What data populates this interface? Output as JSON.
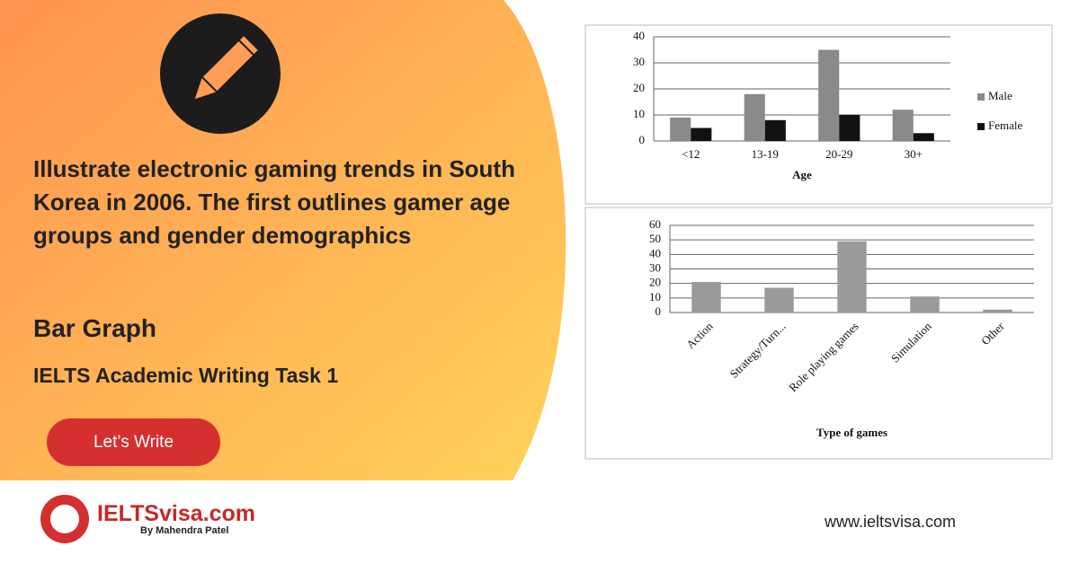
{
  "header": {
    "title": "Illustrate electronic gaming trends in South Korea in 2006. The first outlines gamer age groups and gender demographics",
    "subtitle": "Bar Graph",
    "task": "IELTS Academic Writing Task 1",
    "button": "Let’s Write"
  },
  "footer": {
    "brand": "IELTSvisa.com",
    "byline": "By Mahendra Patel",
    "url": "www.ieltsvisa.com"
  },
  "chart_data": [
    {
      "type": "bar",
      "x_label": "Age",
      "categories": [
        "<12",
        "13-19",
        "20-29",
        "30+"
      ],
      "series": [
        {
          "name": "Male",
          "color": "#8a8a8a",
          "values": [
            9,
            18,
            35,
            12
          ]
        },
        {
          "name": "Female",
          "color": "#111111",
          "values": [
            5,
            8,
            10,
            3
          ]
        }
      ],
      "ylim": [
        0,
        40
      ],
      "yticks": [
        0,
        10,
        20,
        30,
        40
      ],
      "grid": true,
      "legend": "right"
    },
    {
      "type": "bar",
      "x_label": "Type of games",
      "categories": [
        "Action",
        "Strategy/Turn...",
        "Role playing games",
        "Simulation",
        "Other"
      ],
      "values": [
        21,
        17,
        49,
        11,
        2
      ],
      "color": "#9a9a9a",
      "ylim": [
        0,
        60
      ],
      "yticks": [
        0,
        10,
        20,
        30,
        40,
        50,
        60
      ],
      "grid": true
    }
  ]
}
